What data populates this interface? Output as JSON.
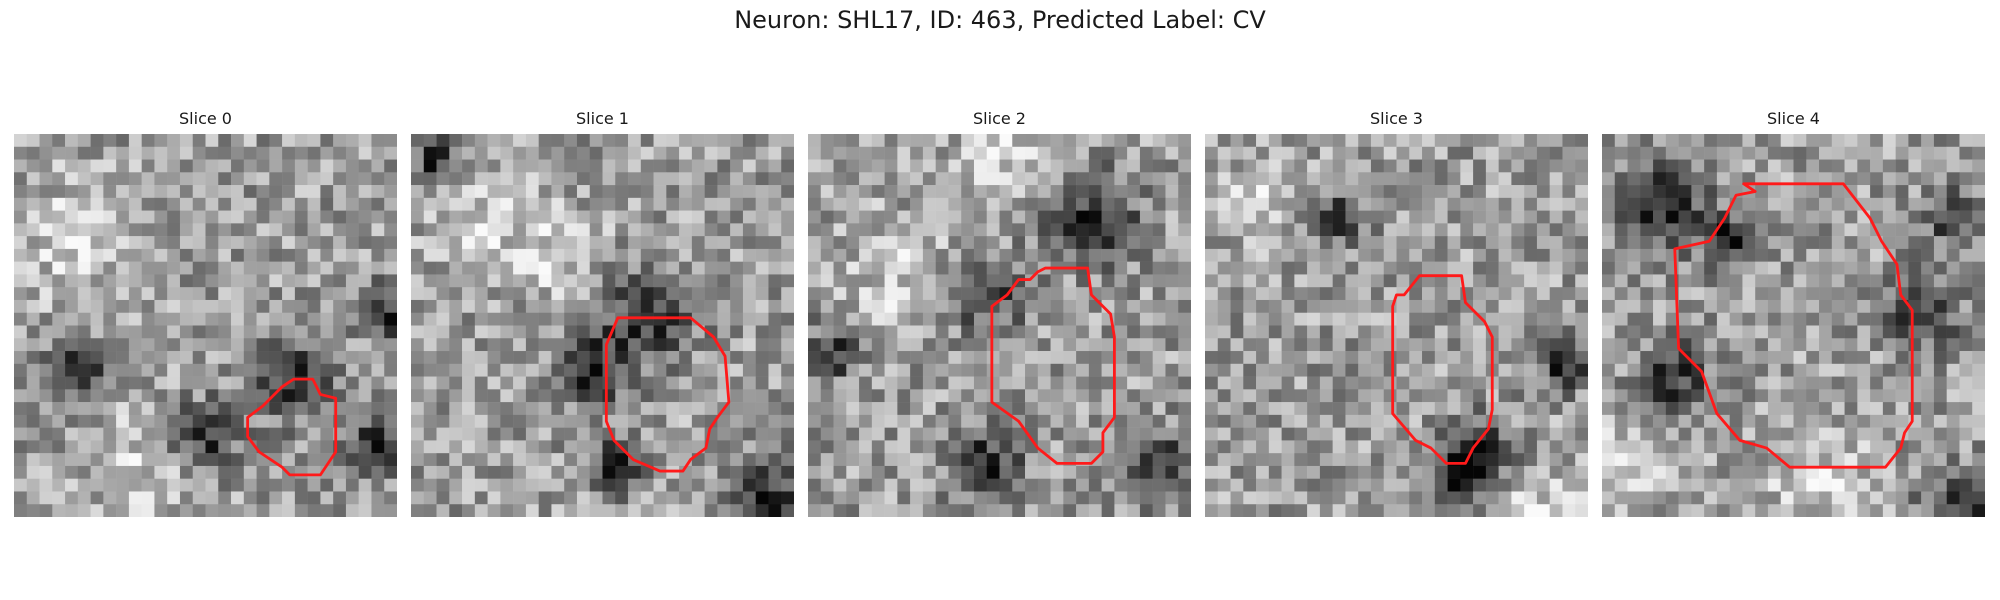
{
  "figure": {
    "title": "Neuron: SHL17, ID: 463, Predicted Label: CV"
  },
  "panels": [
    {
      "title": "Slice 0",
      "seed": 11,
      "dark_spots": [
        [
          0.7,
          0.62,
          2.2
        ],
        [
          0.48,
          0.77,
          1.8
        ],
        [
          0.98,
          0.45,
          1.6
        ],
        [
          0.92,
          0.8,
          1.5
        ],
        [
          0.15,
          0.6,
          1.5
        ]
      ],
      "light_spots": [
        [
          0.15,
          0.25,
          3.5
        ],
        [
          0.3,
          0.85,
          3
        ]
      ],
      "contour": [
        [
          0.73,
          0.64
        ],
        [
          0.78,
          0.64
        ],
        [
          0.8,
          0.68
        ],
        [
          0.84,
          0.69
        ],
        [
          0.84,
          0.83
        ],
        [
          0.8,
          0.89
        ],
        [
          0.72,
          0.89
        ],
        [
          0.7,
          0.87
        ],
        [
          0.64,
          0.83
        ],
        [
          0.61,
          0.79
        ],
        [
          0.61,
          0.74
        ],
        [
          0.65,
          0.71
        ],
        [
          0.7,
          0.66
        ]
      ]
    },
    {
      "title": "Slice 1",
      "seed": 23,
      "dark_spots": [
        [
          0.6,
          0.45,
          2.5
        ],
        [
          0.46,
          0.6,
          2
        ],
        [
          0.52,
          0.85,
          1.5
        ],
        [
          0.92,
          0.92,
          2
        ],
        [
          0.05,
          0.05,
          1.5
        ]
      ],
      "light_spots": [
        [
          0.17,
          0.2,
          3
        ],
        [
          0.38,
          0.3,
          2.5
        ]
      ],
      "contour": [
        [
          0.54,
          0.48
        ],
        [
          0.73,
          0.48
        ],
        [
          0.79,
          0.53
        ],
        [
          0.82,
          0.58
        ],
        [
          0.83,
          0.7
        ],
        [
          0.8,
          0.74
        ],
        [
          0.78,
          0.77
        ],
        [
          0.77,
          0.82
        ],
        [
          0.73,
          0.85
        ],
        [
          0.71,
          0.88
        ],
        [
          0.65,
          0.88
        ],
        [
          0.58,
          0.85
        ],
        [
          0.53,
          0.8
        ],
        [
          0.51,
          0.75
        ],
        [
          0.51,
          0.55
        ]
      ]
    },
    {
      "title": "Slice 2",
      "seed": 37,
      "dark_spots": [
        [
          0.73,
          0.2,
          2.5
        ],
        [
          0.45,
          0.85,
          2
        ],
        [
          0.9,
          0.85,
          2
        ],
        [
          0.45,
          0.4,
          2
        ],
        [
          0.05,
          0.55,
          1.5
        ]
      ],
      "light_spots": [
        [
          0.22,
          0.35,
          3
        ],
        [
          0.5,
          0.05,
          2.5
        ]
      ],
      "contour": [
        [
          0.55,
          0.38
        ],
        [
          0.58,
          0.38
        ],
        [
          0.6,
          0.36
        ],
        [
          0.62,
          0.35
        ],
        [
          0.73,
          0.35
        ],
        [
          0.74,
          0.42
        ],
        [
          0.79,
          0.47
        ],
        [
          0.8,
          0.53
        ],
        [
          0.8,
          0.74
        ],
        [
          0.77,
          0.78
        ],
        [
          0.77,
          0.83
        ],
        [
          0.74,
          0.86
        ],
        [
          0.65,
          0.86
        ],
        [
          0.6,
          0.82
        ],
        [
          0.55,
          0.75
        ],
        [
          0.48,
          0.7
        ],
        [
          0.48,
          0.55
        ],
        [
          0.48,
          0.45
        ],
        [
          0.52,
          0.42
        ]
      ]
    },
    {
      "title": "Slice 3",
      "seed": 53,
      "dark_spots": [
        [
          0.7,
          0.82,
          2
        ],
        [
          0.65,
          0.88,
          1.5
        ],
        [
          0.92,
          0.58,
          1.5
        ],
        [
          0.33,
          0.2,
          1.5
        ]
      ],
      "light_spots": [
        [
          0.15,
          0.15,
          2.5
        ],
        [
          0.85,
          0.95,
          2.5
        ]
      ],
      "contour": [
        [
          0.5,
          0.42
        ],
        [
          0.52,
          0.42
        ],
        [
          0.56,
          0.37
        ],
        [
          0.67,
          0.37
        ],
        [
          0.68,
          0.44
        ],
        [
          0.73,
          0.49
        ],
        [
          0.75,
          0.53
        ],
        [
          0.75,
          0.72
        ],
        [
          0.74,
          0.77
        ],
        [
          0.7,
          0.82
        ],
        [
          0.68,
          0.86
        ],
        [
          0.63,
          0.86
        ],
        [
          0.59,
          0.82
        ],
        [
          0.55,
          0.8
        ],
        [
          0.49,
          0.73
        ],
        [
          0.49,
          0.45
        ]
      ]
    },
    {
      "title": "Slice 4",
      "seed": 71,
      "dark_spots": [
        [
          0.15,
          0.17,
          2.5
        ],
        [
          0.17,
          0.62,
          2
        ],
        [
          0.82,
          0.45,
          2
        ],
        [
          0.9,
          0.2,
          1.5
        ],
        [
          0.92,
          0.95,
          2
        ],
        [
          0.32,
          0.27,
          1.5
        ]
      ],
      "light_spots": [
        [
          0.55,
          0.9,
          3
        ],
        [
          0.08,
          0.8,
          2.5
        ]
      ],
      "contour": [
        [
          0.28,
          0.28
        ],
        [
          0.32,
          0.22
        ],
        [
          0.35,
          0.16
        ],
        [
          0.4,
          0.15
        ],
        [
          0.37,
          0.13
        ],
        [
          0.63,
          0.13
        ],
        [
          0.7,
          0.22
        ],
        [
          0.73,
          0.28
        ],
        [
          0.77,
          0.34
        ],
        [
          0.78,
          0.42
        ],
        [
          0.81,
          0.46
        ],
        [
          0.81,
          0.75
        ],
        [
          0.79,
          0.78
        ],
        [
          0.78,
          0.82
        ],
        [
          0.74,
          0.87
        ],
        [
          0.49,
          0.87
        ],
        [
          0.43,
          0.82
        ],
        [
          0.36,
          0.8
        ],
        [
          0.3,
          0.73
        ],
        [
          0.26,
          0.62
        ],
        [
          0.2,
          0.56
        ],
        [
          0.19,
          0.3
        ]
      ]
    }
  ],
  "colors": {
    "contour": "#ff1a1a",
    "text": "#1a1a1a"
  }
}
